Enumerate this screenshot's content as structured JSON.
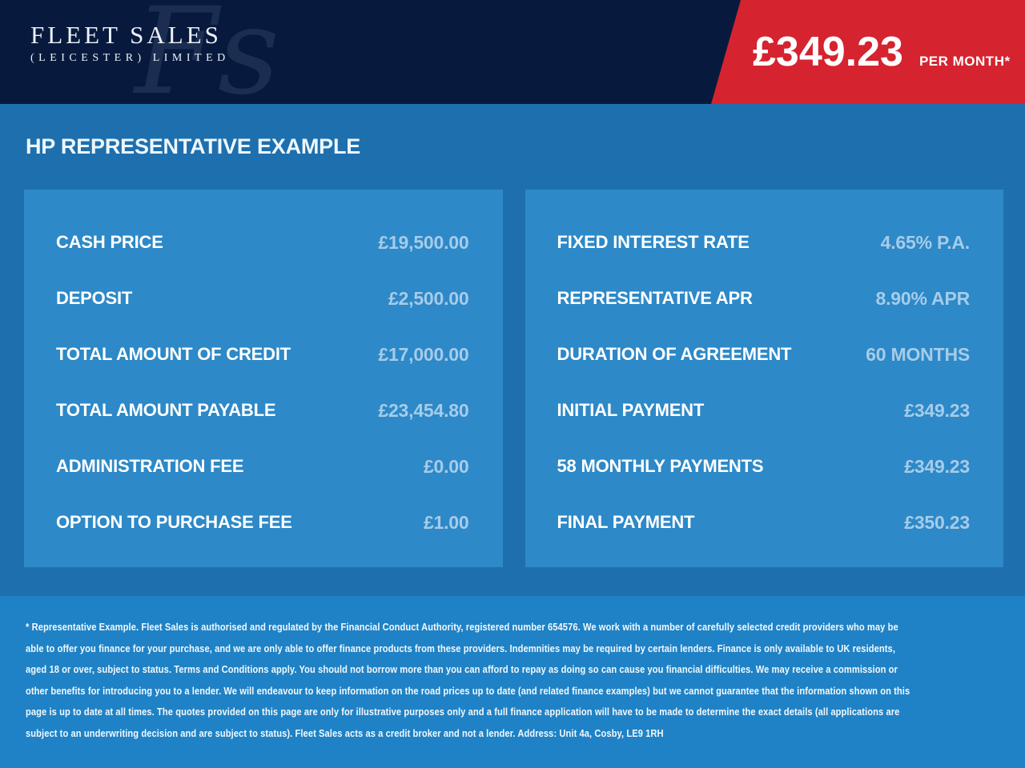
{
  "header": {
    "logo": {
      "name": "FLEET SALES",
      "subname": "(LEICESTER) LIMITED",
      "watermark": "Fs"
    },
    "price_banner": {
      "amount": "£349.23",
      "suffix": "PER MONTH*"
    }
  },
  "main": {
    "heading": "HP REPRESENTATIVE EXAMPLE",
    "left_panel": {
      "rows": [
        {
          "label": "CASH PRICE",
          "value": "£19,500.00"
        },
        {
          "label": "DEPOSIT",
          "value": "£2,500.00"
        },
        {
          "label": "TOTAL AMOUNT OF CREDIT",
          "value": "£17,000.00"
        },
        {
          "label": "TOTAL AMOUNT PAYABLE",
          "value": "£23,454.80"
        },
        {
          "label": "ADMINISTRATION FEE",
          "value": "£0.00"
        },
        {
          "label": "OPTION TO PURCHASE FEE",
          "value": "£1.00"
        }
      ]
    },
    "right_panel": {
      "rows": [
        {
          "label": "FIXED INTEREST RATE",
          "value": "4.65% P.A."
        },
        {
          "label": "REPRESENTATIVE APR",
          "value": "8.90% APR"
        },
        {
          "label": "DURATION OF AGREEMENT",
          "value": "60 MONTHS"
        },
        {
          "label": "INITIAL PAYMENT",
          "value": "£349.23"
        },
        {
          "label": "58 MONTHLY PAYMENTS",
          "value": "£349.23"
        },
        {
          "label": "FINAL PAYMENT",
          "value": "£350.23"
        }
      ]
    }
  },
  "footer": {
    "disclaimer": "* Representative Example. Fleet Sales is authorised and regulated by the Financial Conduct Authority, registered number 654576. We work with a number of carefully selected credit providers who may be able to offer you finance for your purchase, and we are only able to offer finance products from these providers. Indemnities may be required by certain lenders. Finance is only available to UK residents, aged 18 or over, subject to status. Terms and Conditions apply. You should not borrow more than you can afford to repay as doing so can cause you financial difficulties. We may receive a commission or other benefits for introducing you to a lender. We will endeavour to keep information on the road prices up to date (and related finance examples) but we cannot guarantee that the information shown on this page is up to date at all times. The quotes provided on this page are only for illustrative purposes only and a full finance application will have to be made to determine the exact details (all applications are subject to an underwriting decision and are subject to status). Fleet Sales acts as a credit broker and not a lender. Address: Unit 4a, Cosby, LE9 1RH"
  },
  "colors": {
    "navy": "#071a3e",
    "red": "#d5232f",
    "bg-blue": "#1e6fae",
    "panel-blue": "#2d89c8",
    "band-blue": "#1f82c6",
    "value-blue": "#a6cce9"
  }
}
